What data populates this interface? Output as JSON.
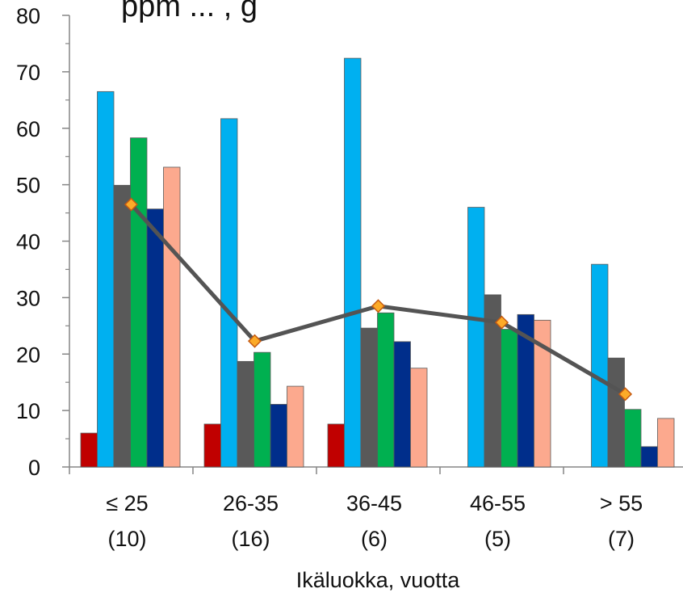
{
  "chart_data": {
    "type": "bar",
    "title": "ppm ... , g",
    "xlabel": "Ikäluokka, vuotta",
    "ylabel": "",
    "ylim": [
      0,
      80
    ],
    "ytick_step": 10,
    "grid": false,
    "categories": [
      {
        "label": "≤ 25",
        "n": "(10)"
      },
      {
        "label": "26-35",
        "n": "(16)"
      },
      {
        "label": "36-45",
        "n": "(6)"
      },
      {
        "label": "46-55",
        "n": "(5)"
      },
      {
        "label": "> 55",
        "n": "(7)"
      }
    ],
    "series": [
      {
        "color": "#c00000",
        "values": [
          6,
          7.6,
          7.6,
          0,
          0
        ]
      },
      {
        "color": "#00b0f0",
        "values": [
          66.5,
          61.7,
          72.4,
          46,
          35.9
        ]
      },
      {
        "color": "#595959",
        "values": [
          49.9,
          18.7,
          24.6,
          30.5,
          19.3
        ]
      },
      {
        "color": "#00b050",
        "values": [
          58.3,
          20.3,
          27.3,
          24.4,
          10.2
        ]
      },
      {
        "color": "#002e8b",
        "values": [
          45.7,
          11.1,
          22.2,
          27,
          3.6
        ]
      },
      {
        "color": "#fca98e",
        "values": [
          53.1,
          14.3,
          17.5,
          26,
          8.6
        ]
      }
    ],
    "line": {
      "color": "#545454",
      "marker_color": "#fcab28",
      "marker_edge": "#c55a11",
      "values": [
        46.5,
        22.3,
        28.5,
        25.6,
        12.9
      ]
    }
  }
}
